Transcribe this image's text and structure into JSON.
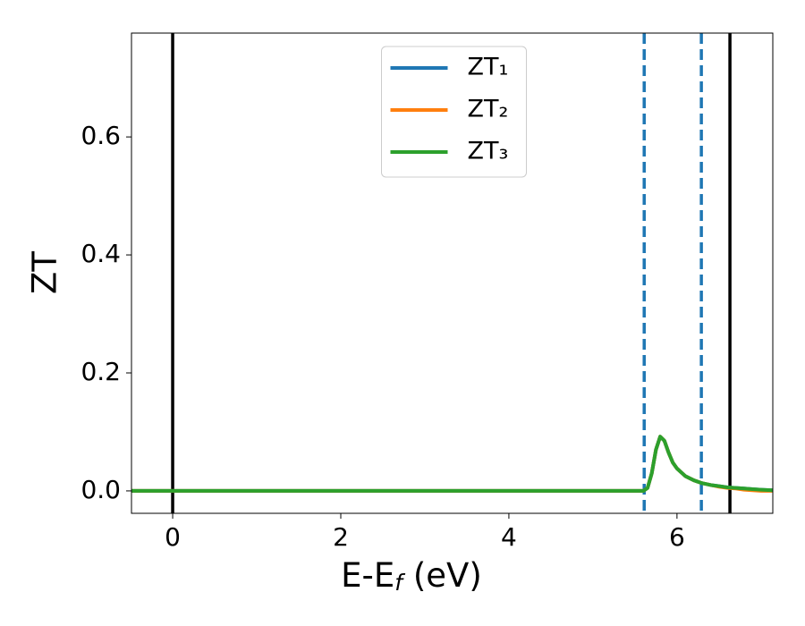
{
  "chart_data": {
    "type": "line",
    "xlabel": [
      "E-E",
      "f",
      " (eV)"
    ],
    "ylabel": "ZT",
    "x": [
      -0.49,
      5.6,
      5.65,
      5.7,
      5.75,
      5.8,
      5.85,
      5.9,
      5.95,
      6.0,
      6.1,
      6.2,
      6.3,
      6.4,
      6.5,
      6.6,
      6.7,
      6.8,
      6.9,
      7.0,
      7.14
    ],
    "series": [
      {
        "name": "ZT₁",
        "color": "#1f77b4",
        "values": [
          0,
          0,
          0.005,
          0.03,
          0.07,
          0.092,
          0.085,
          0.065,
          0.048,
          0.038,
          0.025,
          0.018,
          0.013,
          0.01,
          0.008,
          0.006,
          0.005,
          0.004,
          0.003,
          0.002,
          0.001
        ]
      },
      {
        "name": "ZT₂",
        "color": "#ff7f0e",
        "values": [
          0,
          0,
          0.005,
          0.03,
          0.07,
          0.092,
          0.085,
          0.065,
          0.048,
          0.038,
          0.025,
          0.018,
          0.013,
          0.01,
          0.007,
          0.005,
          0.004,
          0.002,
          0.001,
          0,
          0
        ]
      },
      {
        "name": "ZT₃",
        "color": "#2ca02c",
        "values": [
          0,
          0,
          0.005,
          0.03,
          0.07,
          0.092,
          0.085,
          0.065,
          0.048,
          0.038,
          0.025,
          0.018,
          0.013,
          0.01,
          0.008,
          0.006,
          0.005,
          0.004,
          0.003,
          0.002,
          0.001
        ]
      }
    ],
    "vlines": [
      {
        "x": 0,
        "color": "#000000",
        "style": "solid"
      },
      {
        "x": 6.63,
        "color": "#000000",
        "style": "solid"
      },
      {
        "x": 5.61,
        "color": "#1f77b4",
        "style": "dashed"
      },
      {
        "x": 6.29,
        "color": "#1f77b4",
        "style": "dashed"
      }
    ],
    "xlim": [
      -0.49,
      7.14
    ],
    "xticks": [
      0,
      2,
      4,
      6
    ],
    "ylim": [
      -0.038,
      0.776
    ],
    "yticks": [
      {
        "value": 0,
        "label": "0.0"
      },
      0.2,
      0.4,
      0.6
    ],
    "legend": "upper center"
  }
}
